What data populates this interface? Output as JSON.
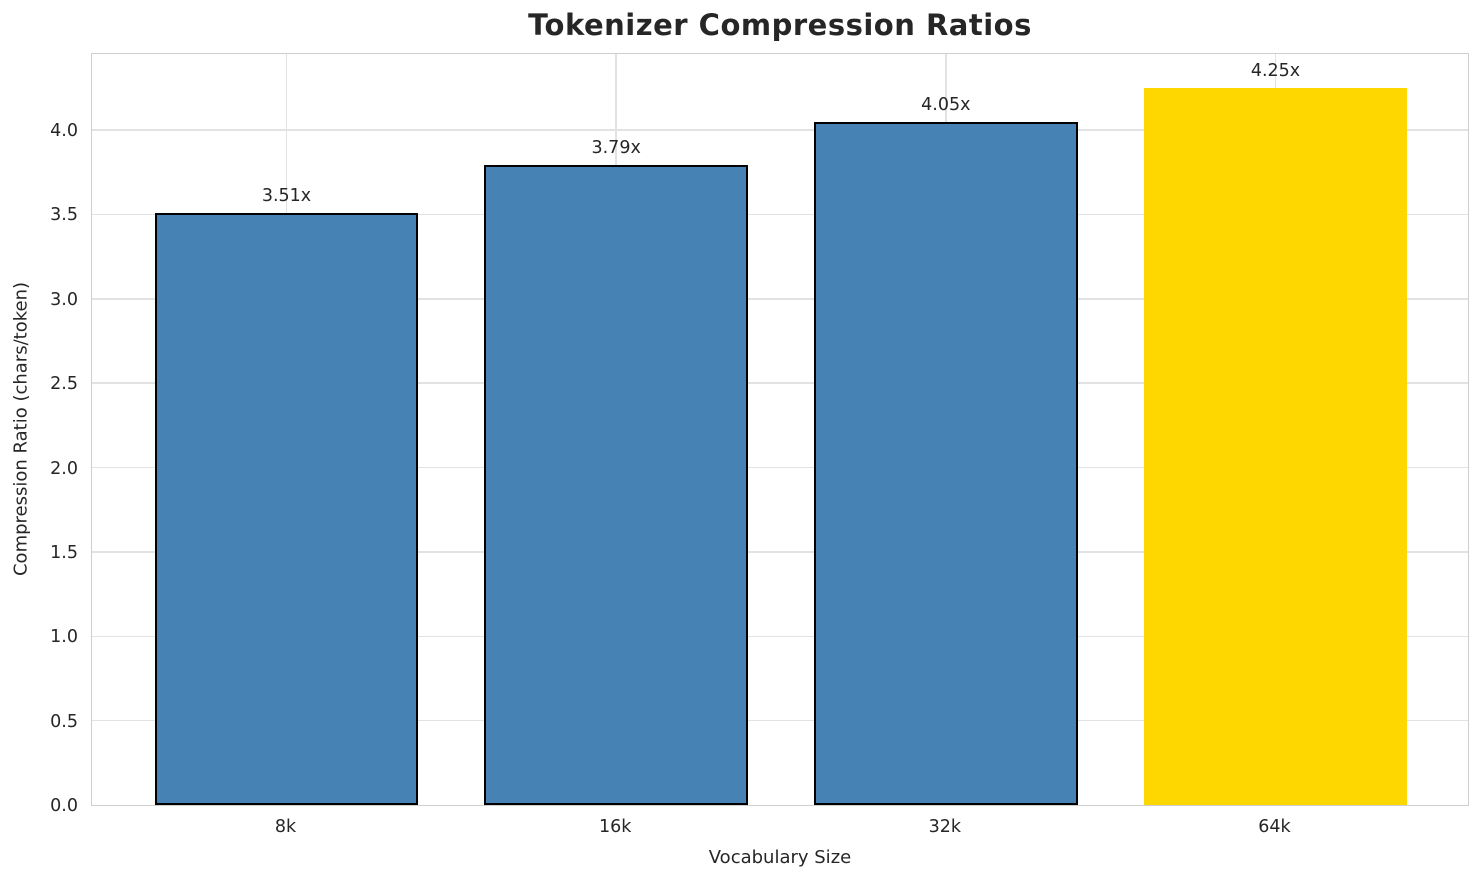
{
  "chart_data": {
    "type": "bar",
    "title": "Tokenizer Compression Ratios",
    "xlabel": "Vocabulary Size",
    "ylabel": "Compression Ratio (chars/token)",
    "categories": [
      "8k",
      "16k",
      "32k",
      "64k"
    ],
    "values": [
      3.51,
      3.79,
      4.05,
      4.25
    ],
    "bar_labels": [
      "3.51x",
      "3.79x",
      "4.05x",
      "4.25x"
    ],
    "bar_colors": [
      "#4682B4",
      "#4682B4",
      "#4682B4",
      "#FFD700"
    ],
    "bar_edge_colors": [
      "#000000",
      "#000000",
      "#000000",
      "none"
    ],
    "ytick_labels": [
      "0.0",
      "0.5",
      "1.0",
      "1.5",
      "2.0",
      "2.5",
      "3.0",
      "3.5",
      "4.0"
    ],
    "ytick_values": [
      0,
      0.5,
      1,
      1.5,
      2,
      2.5,
      3,
      3.5,
      4
    ],
    "ylim": [
      0,
      4.4625
    ],
    "grid": true,
    "legend_position": "none"
  },
  "colors": {
    "background": "#ffffff",
    "grid": "#e2e2e2",
    "spine": "#cfcfcf",
    "text": "#262626",
    "highlight_bar": "#FFD700",
    "default_bar": "#4682B4"
  }
}
